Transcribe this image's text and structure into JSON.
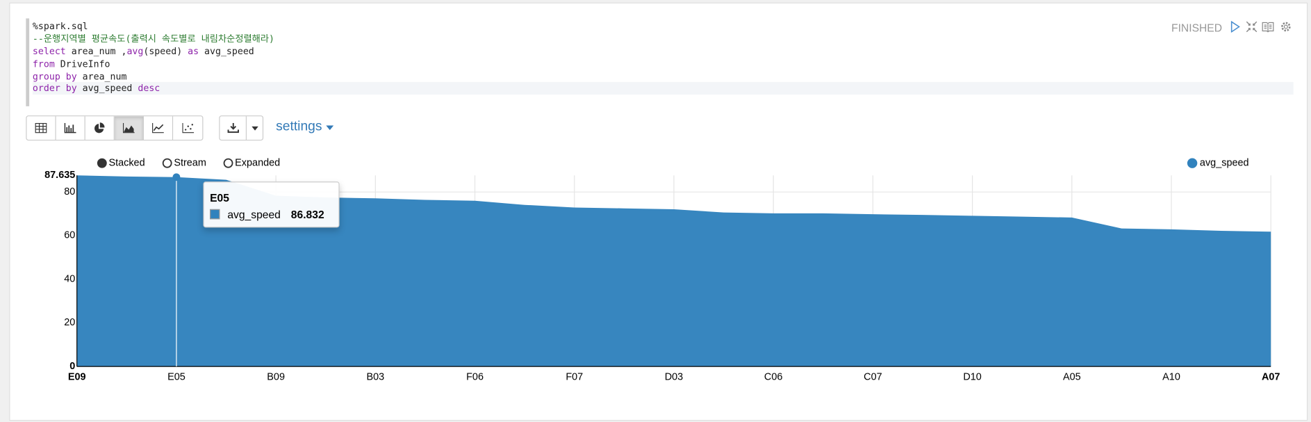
{
  "editor": {
    "lines": [
      [
        "%spark.sql"
      ],
      [
        "--운행지역별 평균속도(출력시 속도별로 내림차순정렬해라)"
      ],
      [
        "select",
        " area_num ,",
        "avg",
        "(speed) ",
        "as",
        " avg_speed"
      ],
      [
        "from",
        " DriveInfo"
      ],
      [
        "group by",
        " area_num"
      ],
      [
        "order by",
        " avg_speed ",
        "desc"
      ]
    ]
  },
  "status": "FINISHED",
  "settings_label": "settings",
  "chart_modes": [
    "Stacked",
    "Stream",
    "Expanded"
  ],
  "chart_data": {
    "type": "area",
    "categories": [
      "E09",
      null,
      "E05",
      null,
      "B09",
      null,
      "B03",
      null,
      "F06",
      null,
      "F07",
      null,
      "D03",
      null,
      "C06",
      null,
      "C07",
      null,
      "D10",
      null,
      "A05",
      null,
      "A10",
      null,
      "A07"
    ],
    "series": [
      {
        "name": "avg_speed",
        "color": "#3182bd",
        "values": [
          87.635,
          87.1,
          86.832,
          85.6,
          78.3,
          77.5,
          77.1,
          76.4,
          76.0,
          74.1,
          72.9,
          72.5,
          72.1,
          70.6,
          70.2,
          70.2,
          69.8,
          69.5,
          69.1,
          68.7,
          68.3,
          63.3,
          62.9,
          62.2,
          61.8
        ]
      }
    ],
    "ylim": [
      0,
      87.635
    ],
    "yticks": [
      0,
      20,
      40,
      60,
      80,
      87.635
    ],
    "grid": true,
    "legend": "top-right",
    "tooltip_index": 2
  }
}
